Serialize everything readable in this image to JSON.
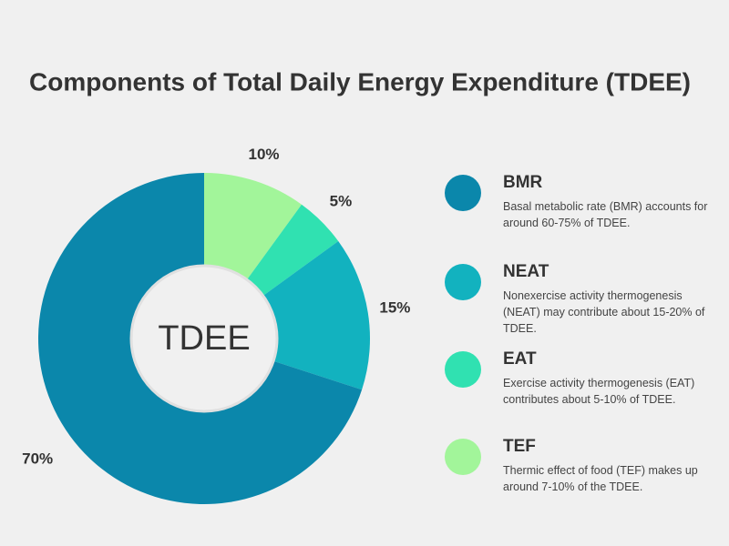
{
  "chart_data": {
    "type": "donut",
    "title": "Components of Total Daily Energy Expenditure (TDEE)",
    "center_label": "TDEE",
    "categories": [
      "BMR",
      "NEAT",
      "EAT",
      "TEF"
    ],
    "values": [
      70,
      15,
      5,
      10
    ],
    "value_labels": [
      "70%",
      "15%",
      "5%",
      "10%"
    ],
    "colors": [
      "#0b87ab",
      "#12b2bf",
      "#30e1b1",
      "#a2f59a"
    ],
    "descriptions": [
      "Basal metabolic rate (BMR) accounts for around 60-75% of TDEE.",
      "Nonexercise activity thermogenesis (NEAT) may contribute about 15-20% of TDEE.",
      "Exercise activity thermogenesis (EAT) contributes about 5-10% of TDEE.",
      "Thermic effect of food (TEF) makes up around 7-10% of the TDEE."
    ]
  }
}
